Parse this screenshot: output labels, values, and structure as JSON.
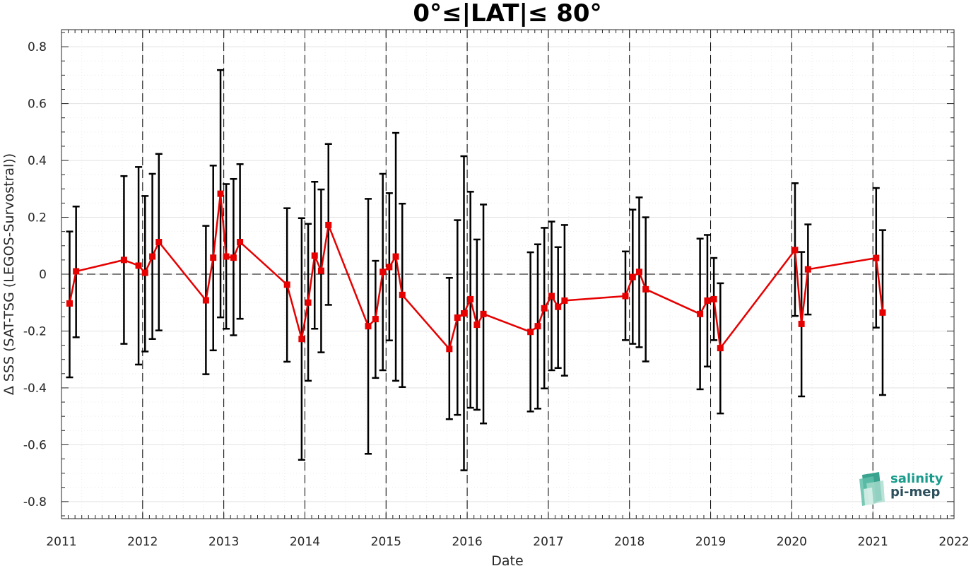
{
  "chart_data": {
    "type": "line",
    "title": "0°≤|LAT|≤ 80°",
    "xlabel": "Date",
    "ylabel": "Δ SSS (SAT-TSG (LEGOS-Survostral))",
    "xlim": [
      2011,
      2022
    ],
    "ylim": [
      -0.86,
      0.86
    ],
    "x_ticks": [
      "2011",
      "2012",
      "2013",
      "2014",
      "2015",
      "2016",
      "2017",
      "2018",
      "2019",
      "2020",
      "2021",
      "2022"
    ],
    "y_ticks": [
      "0.8",
      "0.6",
      "0.4",
      "0.2",
      "0",
      "-0.2",
      "-0.4",
      "-0.6",
      "-0.8"
    ],
    "grid": true,
    "year_markers": [
      2012,
      2013,
      2014,
      2015,
      2016,
      2017,
      2018,
      2019,
      2020,
      2021
    ],
    "series": [
      {
        "color": "#e60000",
        "marker": "square",
        "errorbar_color": "#000000",
        "x": [
          2011.1,
          2011.18,
          2011.77,
          2011.95,
          2012.03,
          2012.12,
          2012.2,
          2012.78,
          2012.87,
          2012.96,
          2013.03,
          2013.12,
          2013.2,
          2013.78,
          2013.96,
          2014.04,
          2014.12,
          2014.2,
          2014.29,
          2014.78,
          2014.87,
          2014.96,
          2015.04,
          2015.12,
          2015.2,
          2015.78,
          2015.88,
          2015.96,
          2016.04,
          2016.12,
          2016.2,
          2016.78,
          2016.87,
          2016.95,
          2017.04,
          2017.12,
          2017.2,
          2017.95,
          2018.04,
          2018.12,
          2018.2,
          2018.87,
          2018.96,
          2019.04,
          2019.12,
          2020.04,
          2020.12,
          2020.2,
          2021.04,
          2021.12
        ],
        "y": [
          -0.103,
          0.01,
          0.05,
          0.03,
          0.005,
          0.062,
          0.113,
          -0.092,
          0.058,
          0.283,
          0.062,
          0.058,
          0.113,
          -0.037,
          -0.228,
          -0.1,
          0.065,
          0.012,
          0.173,
          -0.183,
          -0.158,
          0.008,
          0.025,
          0.062,
          -0.073,
          -0.263,
          -0.153,
          -0.138,
          -0.088,
          -0.178,
          -0.14,
          -0.203,
          -0.183,
          -0.12,
          -0.077,
          -0.115,
          -0.093,
          -0.077,
          -0.01,
          0.008,
          -0.053,
          -0.14,
          -0.093,
          -0.088,
          -0.26,
          0.085,
          -0.175,
          0.017,
          0.057,
          -0.135
        ],
        "err_low": [
          -0.363,
          -0.222,
          -0.245,
          -0.318,
          -0.272,
          -0.228,
          -0.198,
          -0.352,
          -0.268,
          -0.152,
          -0.192,
          -0.215,
          -0.157,
          -0.308,
          -0.653,
          -0.375,
          -0.192,
          -0.275,
          -0.108,
          -0.632,
          -0.365,
          -0.338,
          -0.233,
          -0.375,
          -0.397,
          -0.51,
          -0.495,
          -0.69,
          -0.47,
          -0.477,
          -0.525,
          -0.483,
          -0.473,
          -0.402,
          -0.338,
          -0.33,
          -0.357,
          -0.232,
          -0.245,
          -0.257,
          -0.307,
          -0.405,
          -0.325,
          -0.232,
          -0.49,
          -0.147,
          -0.43,
          -0.142,
          -0.188,
          -0.425
        ],
        "err_high": [
          0.15,
          0.238,
          0.345,
          0.377,
          0.275,
          0.353,
          0.423,
          0.17,
          0.382,
          0.718,
          0.317,
          0.335,
          0.387,
          0.232,
          0.197,
          0.177,
          0.325,
          0.298,
          0.458,
          0.265,
          0.047,
          0.353,
          0.285,
          0.497,
          0.248,
          -0.013,
          0.19,
          0.415,
          0.29,
          0.122,
          0.245,
          0.077,
          0.105,
          0.163,
          0.185,
          0.095,
          0.173,
          0.08,
          0.227,
          0.27,
          0.2,
          0.125,
          0.138,
          0.057,
          -0.032,
          0.32,
          0.078,
          0.175,
          0.303,
          0.155
        ]
      }
    ]
  },
  "logo": {
    "line1": "salinity",
    "line2": "pi-mep",
    "colors": [
      "#1a9c8c",
      "#2b4f5c"
    ]
  }
}
